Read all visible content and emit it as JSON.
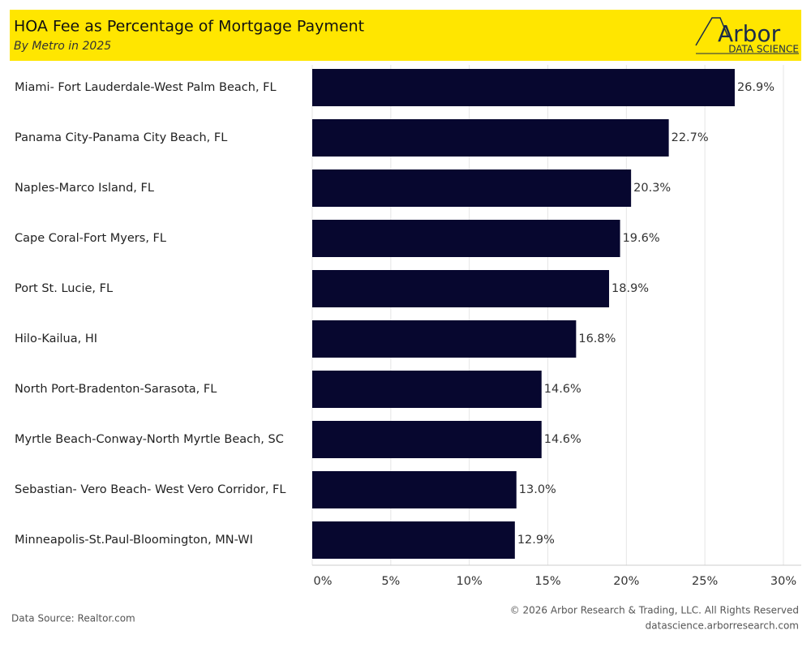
{
  "chart_data": {
    "type": "bar",
    "orientation": "horizontal",
    "title": "HOA Fee as Percentage of Mortgage Payment",
    "subtitle": "By Metro in 2025",
    "logo": {
      "name": "Arbor",
      "tagline": "DATA SCIENCE"
    },
    "categories": [
      "Miami- Fort Lauderdale-West Palm Beach, FL",
      "Panama City-Panama City Beach, FL",
      "Naples-Marco Island, FL",
      "Cape Coral-Fort Myers, FL",
      "Port St. Lucie, FL",
      "Hilo-Kailua, HI",
      "North Port-Bradenton-Sarasota, FL",
      "Myrtle Beach-Conway-North Myrtle Beach, SC",
      "Sebastian- Vero Beach- West Vero Corridor, FL",
      "Minneapolis-St.Paul-Bloomington, MN-WI"
    ],
    "values": [
      26.9,
      22.7,
      20.3,
      19.6,
      18.9,
      16.8,
      14.6,
      14.6,
      13.0,
      12.9
    ],
    "value_labels": [
      "26.9%",
      "22.7%",
      "20.3%",
      "19.6%",
      "18.9%",
      "16.8%",
      "14.6%",
      "14.6%",
      "13.0%",
      "12.9%"
    ],
    "color": "#07072f",
    "xlim": [
      0,
      30
    ],
    "xticks": [
      {
        "value": 0,
        "label": "0%"
      },
      {
        "value": 5,
        "label": "5%"
      },
      {
        "value": 10,
        "label": "10%"
      },
      {
        "value": 15,
        "label": "15%"
      },
      {
        "value": 20,
        "label": "20%"
      },
      {
        "value": 25,
        "label": "25%"
      },
      {
        "value": 30,
        "label": "30%"
      }
    ],
    "grid": true,
    "source": "Data Source: Realtor.com",
    "copyright": "© 2026 Arbor Research & Trading, LLC. All Rights Reserved",
    "website": "datascience.arborresearch.com"
  }
}
